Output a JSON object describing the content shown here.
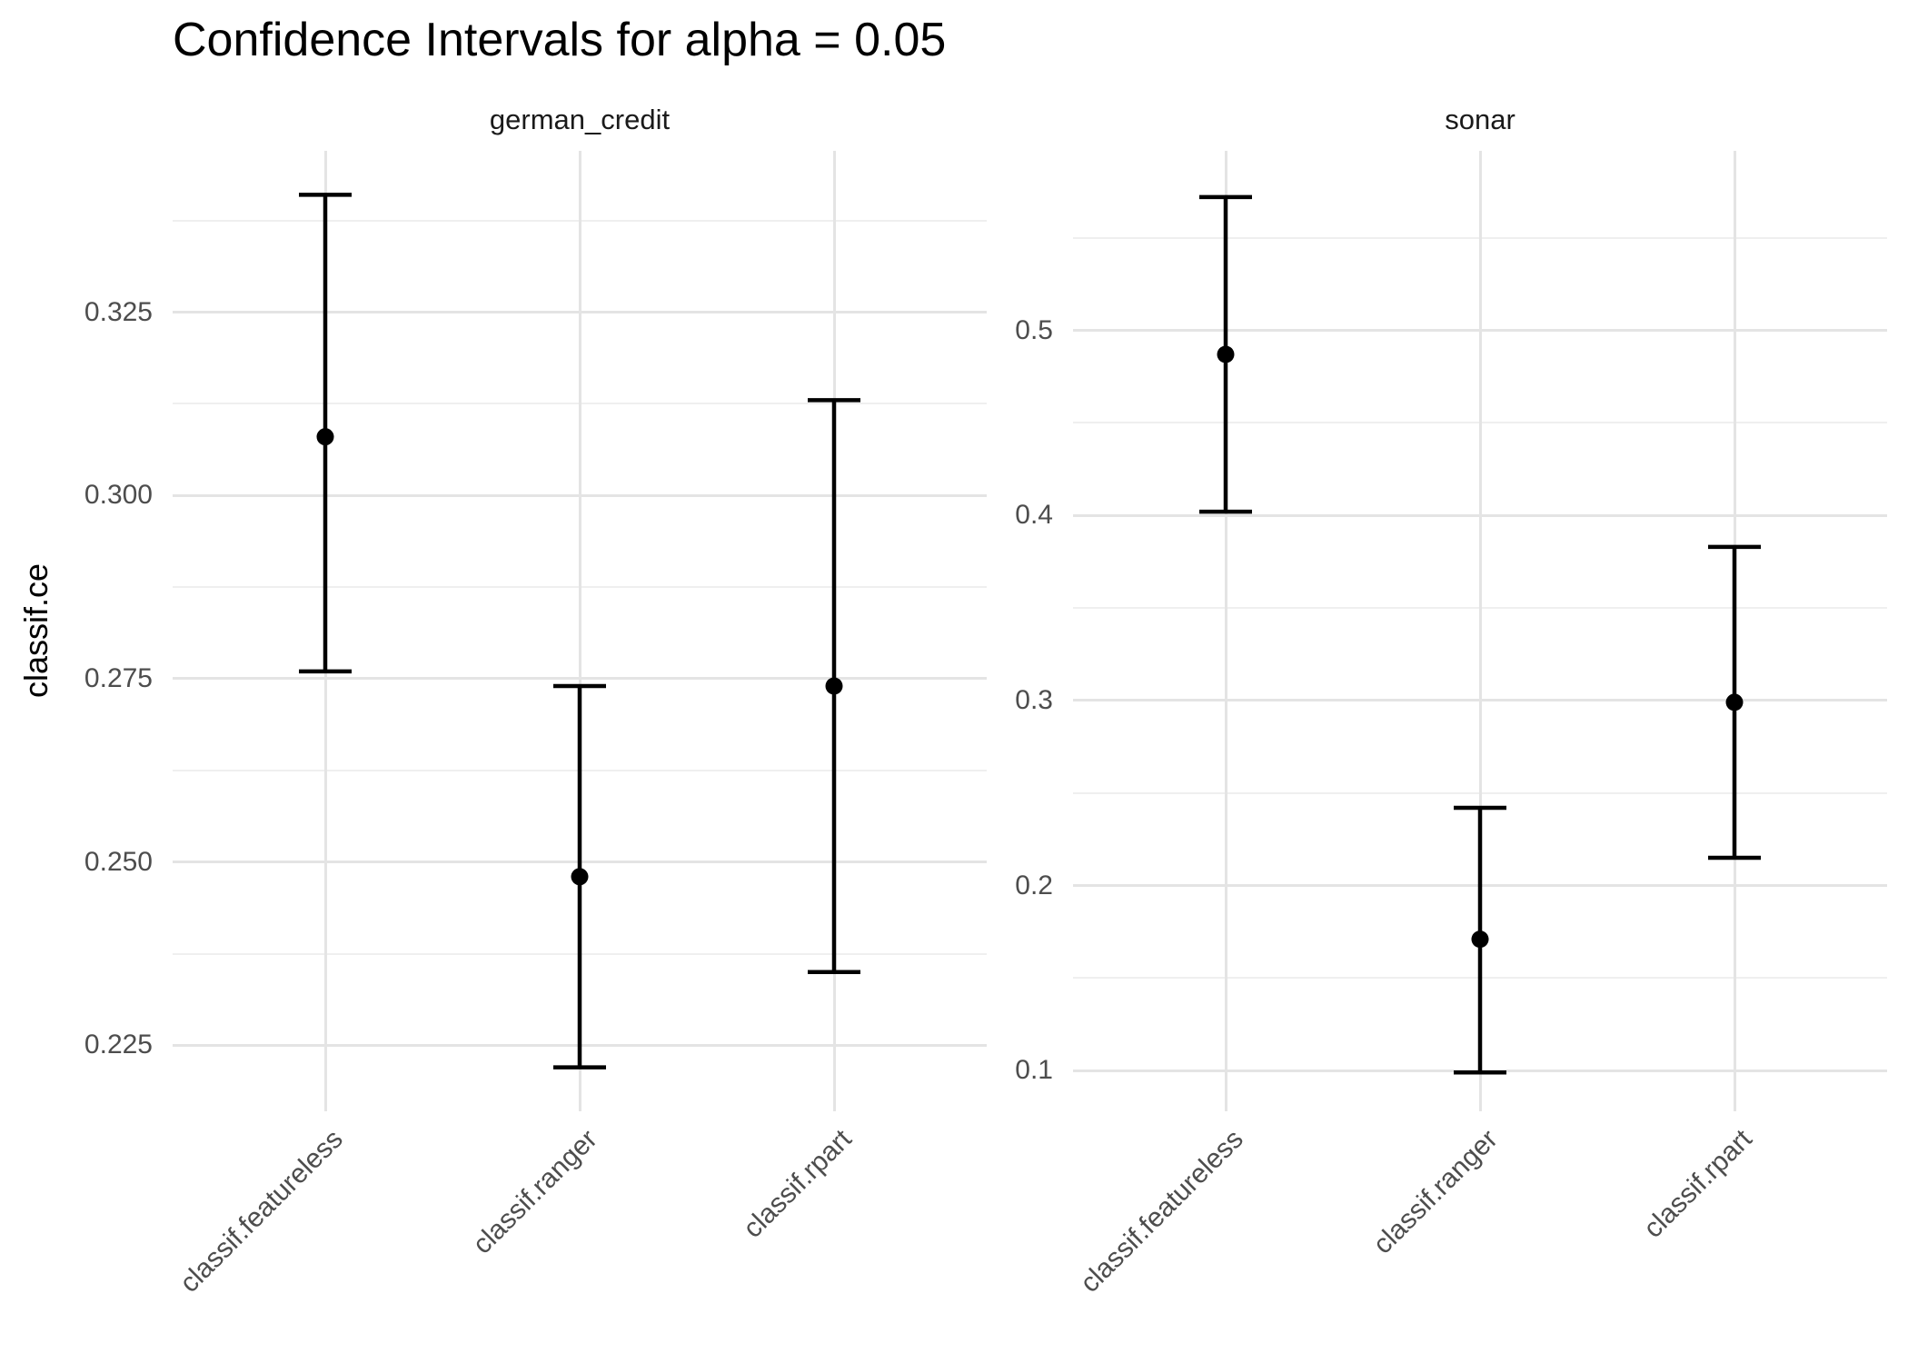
{
  "chart_data": {
    "type": "errorbar",
    "title": "Confidence Intervals for alpha = 0.05",
    "ylabel": "classif.ce",
    "xlabel": "",
    "legend": "none",
    "grid": "major+minor",
    "categories": [
      "classif.featureless",
      "classif.ranger",
      "classif.rpart"
    ],
    "facets": [
      {
        "label": "german_credit",
        "ylim": [
          0.216,
          0.347
        ],
        "yticks": [
          0.225,
          0.25,
          0.275,
          0.3,
          0.325
        ],
        "ytick_labels": [
          "0.225",
          "0.250",
          "0.275",
          "0.300",
          "0.325"
        ],
        "yticks_minor": [
          0.2375,
          0.2625,
          0.2875,
          0.3125,
          0.3375
        ],
        "points": [
          {
            "category": "classif.featureless",
            "estimate": 0.308,
            "lower": 0.276,
            "upper": 0.341
          },
          {
            "category": "classif.ranger",
            "estimate": 0.248,
            "lower": 0.222,
            "upper": 0.274
          },
          {
            "category": "classif.rpart",
            "estimate": 0.274,
            "lower": 0.235,
            "upper": 0.313
          }
        ]
      },
      {
        "label": "sonar",
        "ylim": [
          0.078,
          0.597
        ],
        "yticks": [
          0.1,
          0.2,
          0.3,
          0.4,
          0.5
        ],
        "ytick_labels": [
          "0.1",
          "0.2",
          "0.3",
          "0.4",
          "0.5"
        ],
        "yticks_minor": [
          0.15,
          0.25,
          0.35,
          0.45,
          0.55
        ],
        "points": [
          {
            "category": "classif.featureless",
            "estimate": 0.487,
            "lower": 0.402,
            "upper": 0.572
          },
          {
            "category": "classif.ranger",
            "estimate": 0.171,
            "lower": 0.099,
            "upper": 0.242
          },
          {
            "category": "classif.rpart",
            "estimate": 0.299,
            "lower": 0.215,
            "upper": 0.383
          }
        ]
      }
    ],
    "colors": {
      "background": "#ffffff",
      "point_and_bar": "#000000",
      "grid_major": "#e4e4e4",
      "grid_minor": "#efefef",
      "tick_text": "#4d4d4d",
      "strip_text": "#1a1a1a",
      "title_text": "#000000"
    }
  }
}
